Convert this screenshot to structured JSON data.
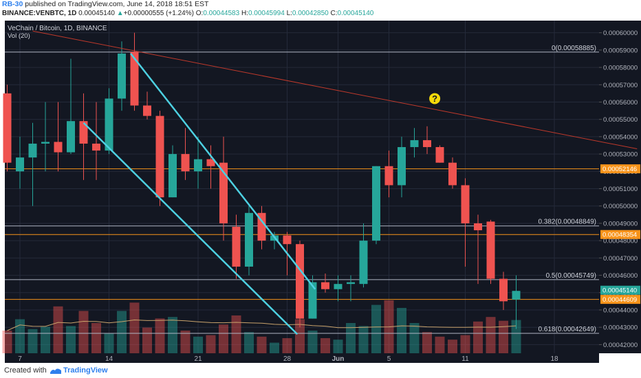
{
  "header": {
    "user": "RB-30",
    "published": "published on TradingView.com, June 14, 2018 18:51 EST",
    "symbol": "BINANCE:VENBTC, 1D",
    "last": "0.00045140",
    "change_arrow": "▲",
    "change": "+0.00000555 (+1.24%)",
    "o_label": "O:",
    "o": "0.00044583",
    "h_label": "H:",
    "h": "0.00045994",
    "l_label": "L:",
    "l": "0.00042850",
    "c_label": "C:",
    "c": "0.00045140"
  },
  "footer": {
    "created": "Created with",
    "brand": "TradingView",
    "logo_icon": "tradingview-logo-icon"
  },
  "chart_data": {
    "type": "candlestick",
    "title": "VeChain / Bitcoin, 1D, BINANCE",
    "indicator": "Vol (20)",
    "ylim": [
      0.000415,
      0.000607
    ],
    "y_ticks": [
      "0.00060000",
      "0.00059000",
      "0.00058000",
      "0.00057000",
      "0.00056000",
      "0.00055000",
      "0.00054000",
      "0.00053000",
      "0.00052000",
      "0.00051000",
      "0.00050000",
      "0.00049000",
      "0.00048000",
      "0.00047000",
      "0.00046000",
      "0.00045000",
      "0.00044000",
      "0.00043000",
      "0.00042000"
    ],
    "x_ticks": [
      {
        "i": 1,
        "label": "7"
      },
      {
        "i": 8,
        "label": "14"
      },
      {
        "i": 15,
        "label": "21"
      },
      {
        "i": 22,
        "label": "28"
      },
      {
        "i": 26,
        "label": "Jun"
      },
      {
        "i": 30,
        "label": "5"
      },
      {
        "i": 36,
        "label": "11"
      },
      {
        "i": 43,
        "label": "18"
      }
    ],
    "candles": [
      {
        "o": 0.000565,
        "h": 0.00057,
        "l": 0.00052,
        "c": 0.000525,
        "v": 0.3
      },
      {
        "o": 0.00052,
        "h": 0.00054,
        "l": 0.00051,
        "c": 0.000528,
        "v": 0.45
      },
      {
        "o": 0.000528,
        "h": 0.000548,
        "l": 0.0005,
        "c": 0.000536,
        "v": 0.32
      },
      {
        "o": 0.000536,
        "h": 0.00056,
        "l": 0.00052,
        "c": 0.000537,
        "v": 0.35
      },
      {
        "o": 0.000537,
        "h": 0.00056,
        "l": 0.00052,
        "c": 0.000531,
        "v": 0.62
      },
      {
        "o": 0.000531,
        "h": 0.000585,
        "l": 0.00053,
        "c": 0.000549,
        "v": 0.36
      },
      {
        "o": 0.000549,
        "h": 0.000565,
        "l": 0.000515,
        "c": 0.000536,
        "v": 0.56
      },
      {
        "o": 0.000536,
        "h": 0.00056,
        "l": 0.000515,
        "c": 0.000532,
        "v": 0.4
      },
      {
        "o": 0.000532,
        "h": 0.000568,
        "l": 0.00053,
        "c": 0.000562,
        "v": 0.26
      },
      {
        "o": 0.000562,
        "h": 0.000595,
        "l": 0.000555,
        "c": 0.000588,
        "v": 0.56
      },
      {
        "o": 0.000589,
        "h": 0.0006,
        "l": 0.000555,
        "c": 0.000558,
        "v": 0.67
      },
      {
        "o": 0.000558,
        "h": 0.000566,
        "l": 0.00055,
        "c": 0.000552,
        "v": 0.34
      },
      {
        "o": 0.000552,
        "h": 0.000555,
        "l": 0.0005,
        "c": 0.000505,
        "v": 0.46
      },
      {
        "o": 0.000505,
        "h": 0.000535,
        "l": 0.000505,
        "c": 0.00053,
        "v": 0.48
      },
      {
        "o": 0.00053,
        "h": 0.000545,
        "l": 0.000515,
        "c": 0.00052,
        "v": 0.3
      },
      {
        "o": 0.00052,
        "h": 0.00054,
        "l": 0.00051,
        "c": 0.000527,
        "v": 0.22
      },
      {
        "o": 0.000527,
        "h": 0.000535,
        "l": 0.00051,
        "c": 0.000523,
        "v": 0.24
      },
      {
        "o": 0.000525,
        "h": 0.00054,
        "l": 0.00048,
        "c": 0.00049,
        "v": 0.38
      },
      {
        "o": 0.000488,
        "h": 0.000495,
        "l": 0.000458,
        "c": 0.000465,
        "v": 0.5
      },
      {
        "o": 0.000465,
        "h": 0.0005,
        "l": 0.00046,
        "c": 0.000496,
        "v": 0.28
      },
      {
        "o": 0.000496,
        "h": 0.0005,
        "l": 0.000475,
        "c": 0.00048,
        "v": 0.22
      },
      {
        "o": 0.00048,
        "h": 0.000485,
        "l": 0.000475,
        "c": 0.000483,
        "v": 0.14
      },
      {
        "o": 0.000483,
        "h": 0.000485,
        "l": 0.00046,
        "c": 0.000478,
        "v": 0.2
      },
      {
        "o": 0.000478,
        "h": 0.00048,
        "l": 0.00043,
        "c": 0.000435,
        "v": 0.45
      },
      {
        "o": 0.000435,
        "h": 0.00046,
        "l": 0.000435,
        "c": 0.000456,
        "v": 0.3
      },
      {
        "o": 0.000456,
        "h": 0.000461,
        "l": 0.00045,
        "c": 0.000452,
        "v": 0.2
      },
      {
        "o": 0.000452,
        "h": 0.00046,
        "l": 0.000445,
        "c": 0.000455,
        "v": 0.18
      },
      {
        "o": 0.000455,
        "h": 0.00046,
        "l": 0.000445,
        "c": 0.000456,
        "v": 0.4
      },
      {
        "o": 0.000455,
        "h": 0.00049,
        "l": 0.000453,
        "c": 0.00048,
        "v": 0.36
      },
      {
        "o": 0.00048,
        "h": 0.000523,
        "l": 0.000478,
        "c": 0.000523,
        "v": 0.64
      },
      {
        "o": 0.000523,
        "h": 0.000532,
        "l": 0.000505,
        "c": 0.000512,
        "v": 0.7
      },
      {
        "o": 0.000512,
        "h": 0.00054,
        "l": 0.000505,
        "c": 0.000534,
        "v": 0.6
      },
      {
        "o": 0.000534,
        "h": 0.000545,
        "l": 0.000528,
        "c": 0.000538,
        "v": 0.4
      },
      {
        "o": 0.000538,
        "h": 0.000546,
        "l": 0.00053,
        "c": 0.000534,
        "v": 0.28
      },
      {
        "o": 0.000534,
        "h": 0.000535,
        "l": 0.000525,
        "c": 0.000525,
        "v": 0.22
      },
      {
        "o": 0.000525,
        "h": 0.000528,
        "l": 0.00051,
        "c": 0.000512,
        "v": 0.18
      },
      {
        "o": 0.000512,
        "h": 0.000516,
        "l": 0.000465,
        "c": 0.00049,
        "v": 0.24
      },
      {
        "o": 0.00049,
        "h": 0.000495,
        "l": 0.000455,
        "c": 0.000486,
        "v": 0.42
      },
      {
        "o": 0.000491,
        "h": 0.000492,
        "l": 0.000455,
        "c": 0.000458,
        "v": 0.48
      },
      {
        "o": 0.000458,
        "h": 0.000462,
        "l": 0.00044,
        "c": 0.000445,
        "v": 0.43
      },
      {
        "o": 0.000446,
        "h": 0.00046,
        "l": 0.000429,
        "c": 0.000451,
        "v": 0.44
      }
    ],
    "horizontal_lines": [
      {
        "name": "level-0",
        "y": 0.00058885,
        "label": "0(0.00058885)",
        "color": "#b0b6c4"
      },
      {
        "name": "level-0382",
        "y": 0.00048849,
        "label": "0.382(0.00048849)",
        "color": "#b0b6c4"
      },
      {
        "name": "level-05",
        "y": 0.00045749,
        "label": "0.5(0.00045749)",
        "color": "#b0b6c4"
      },
      {
        "name": "level-0618",
        "y": 0.00042649,
        "label": "0.618(0.00042649)",
        "color": "#b0b6c4"
      },
      {
        "name": "orange-line-1",
        "y": 0.00052146,
        "label": "",
        "color": "#f7931a"
      },
      {
        "name": "orange-line-2",
        "y": 0.00048354,
        "label": "",
        "color": "#f7931a"
      },
      {
        "name": "orange-line-3",
        "y": 0.00044609,
        "label": "",
        "color": "#f7931a"
      }
    ],
    "price_tags": [
      {
        "y": 0.00052146,
        "label": "0.00052146",
        "color": "#f7931a"
      },
      {
        "y": 0.00048354,
        "label": "0.00048354",
        "color": "#f7931a"
      },
      {
        "y": 0.0004514,
        "label": "0.00045140",
        "color": "#26a69a"
      },
      {
        "y": 0.00044609,
        "label": "0.00044609",
        "color": "#f7931a"
      }
    ],
    "trendlines": [
      {
        "name": "channel-upper",
        "color": "#4dd0e1",
        "from": [
          9.7,
          0.000588
        ],
        "to": [
          24.2,
          0.000452
        ]
      },
      {
        "name": "channel-lower",
        "color": "#4dd0e1",
        "from": [
          6.0,
          0.000548
        ],
        "to": [
          22.8,
          0.000426
        ]
      },
      {
        "name": "resistance-line",
        "color": "#c0392b",
        "from": [
          2.0,
          0.000601
        ],
        "to": [
          49.5,
          0.000533
        ]
      }
    ],
    "annotation": {
      "text": "?",
      "i": 33.6,
      "y": 0.000562,
      "color": "#f5d90a"
    },
    "colors": {
      "up": "#26a69a",
      "down": "#ef5350",
      "background": "#131722",
      "grid": "#242a3a",
      "volume_ma": "#c9a36c"
    }
  }
}
